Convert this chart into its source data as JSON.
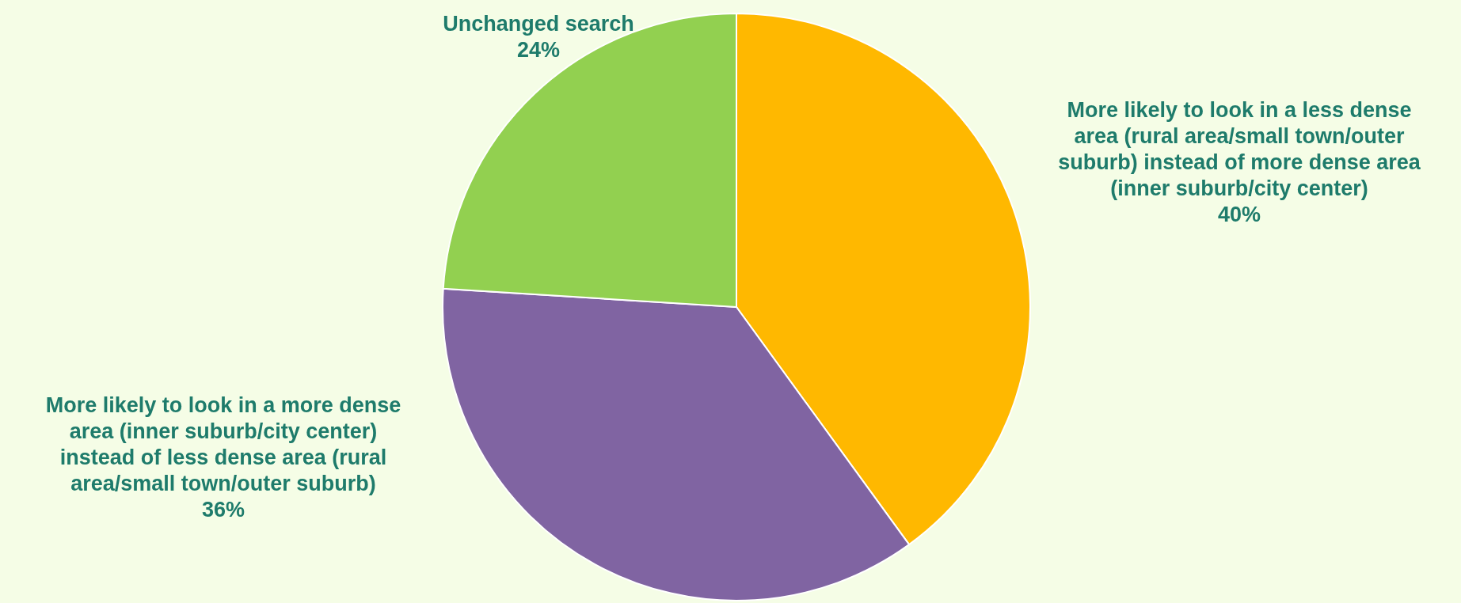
{
  "chart_data": {
    "type": "pie",
    "categories": [
      "More likely to look in a less dense area (rural area/small town/outer suburb) instead of more dense area (inner suburb/city center)",
      "More likely to look in a more dense area (inner suburb/city center) instead of less dense area (rural area/small town/outer suburb)",
      "Unchanged search"
    ],
    "values": [
      40,
      36,
      24
    ],
    "colors": [
      "#ffb800",
      "#8064a2",
      "#92d050"
    ],
    "value_labels": [
      "40%",
      "36%",
      "24%"
    ]
  }
}
